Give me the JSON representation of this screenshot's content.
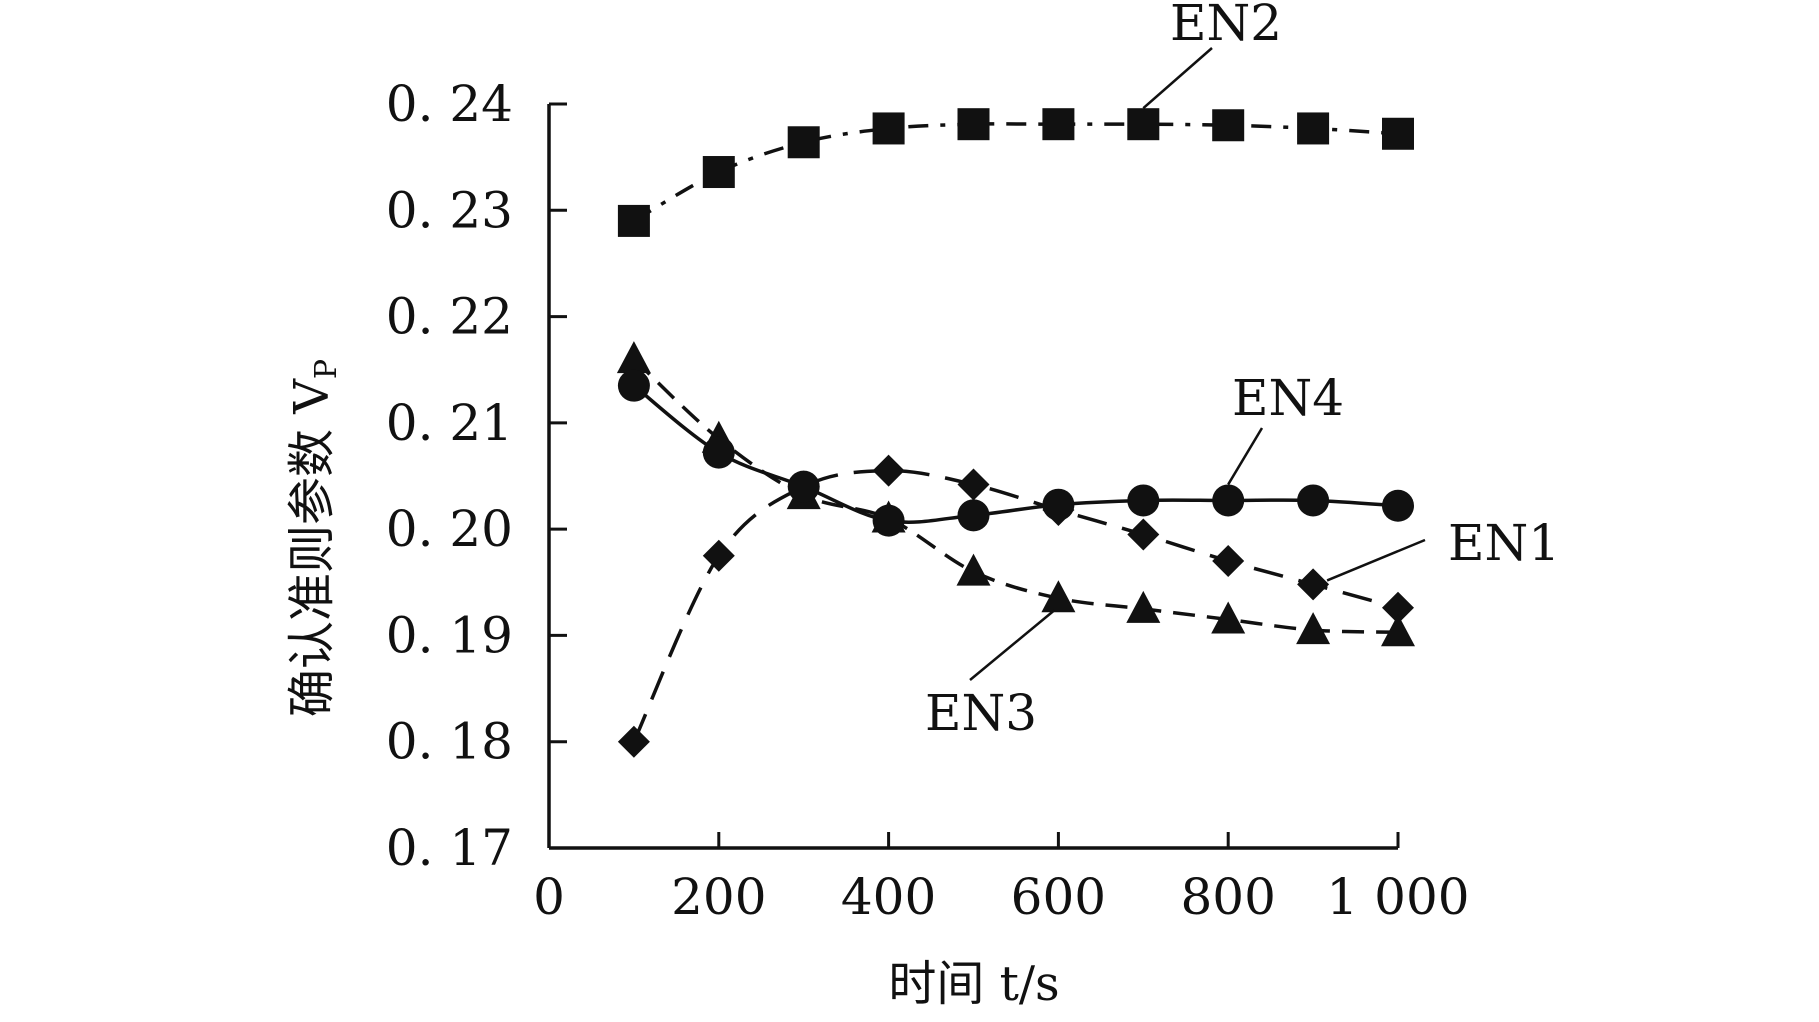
{
  "chart_data": {
    "type": "line",
    "title": "",
    "xlabel": "时间 t/s",
    "ylabel_main": "确认准则参数 V",
    "ylabel_sub": "P",
    "xlim": [
      0,
      1000
    ],
    "ylim": [
      0.17,
      0.24
    ],
    "x_ticks": [
      0,
      200,
      400,
      600,
      800,
      1000
    ],
    "x_tick_labels": [
      "0",
      "200",
      "400",
      "600",
      "800",
      "1 000"
    ],
    "y_ticks": [
      0.17,
      0.18,
      0.19,
      0.2,
      0.21,
      0.22,
      0.23,
      0.24
    ],
    "y_tick_labels": [
      "0. 17",
      "0. 18",
      "0. 19",
      "0. 20",
      "0. 21",
      "0. 22",
      "0. 23",
      "0. 24"
    ],
    "grid": false,
    "legend": "none",
    "series": [
      {
        "name": "EN1",
        "marker": "diamond",
        "line": "long-dash",
        "x": [
          100,
          200,
          300,
          400,
          500,
          600,
          700,
          800,
          900,
          1000
        ],
        "y": [
          0.18,
          0.1975,
          0.204,
          0.2055,
          0.2042,
          0.2018,
          0.1995,
          0.197,
          0.1948,
          0.1926
        ]
      },
      {
        "name": "EN2",
        "marker": "square",
        "line": "dash-dot",
        "x": [
          100,
          200,
          300,
          400,
          500,
          600,
          700,
          800,
          900,
          1000
        ],
        "y": [
          0.229,
          0.2336,
          0.2364,
          0.2377,
          0.2381,
          0.2381,
          0.2381,
          0.238,
          0.2377,
          0.2372
        ]
      },
      {
        "name": "EN3",
        "marker": "triangle",
        "line": "dash",
        "x": [
          100,
          200,
          300,
          400,
          500,
          600,
          700,
          800,
          900,
          1000
        ],
        "y": [
          0.216,
          0.2085,
          0.2032,
          0.201,
          0.196,
          0.1935,
          0.1925,
          0.1915,
          0.1905,
          0.1903
        ]
      },
      {
        "name": "EN4",
        "marker": "circle",
        "line": "solid",
        "x": [
          100,
          200,
          300,
          400,
          500,
          600,
          700,
          800,
          900,
          1000
        ],
        "y": [
          0.2135,
          0.2072,
          0.204,
          0.2008,
          0.2013,
          0.2023,
          0.2027,
          0.2027,
          0.2027,
          0.2022
        ]
      }
    ],
    "annotations": [
      {
        "series": "EN2",
        "text": "EN2",
        "anchor_x": 700,
        "anchor_y": 0.2381
      },
      {
        "series": "EN4",
        "text": "EN4",
        "anchor_x": 800,
        "anchor_y": 0.2027
      },
      {
        "series": "EN1",
        "text": "EN1",
        "anchor_x": 900,
        "anchor_y": 0.1948
      },
      {
        "series": "EN3",
        "text": "EN3",
        "anchor_x": 600,
        "anchor_y": 0.1935
      }
    ]
  }
}
